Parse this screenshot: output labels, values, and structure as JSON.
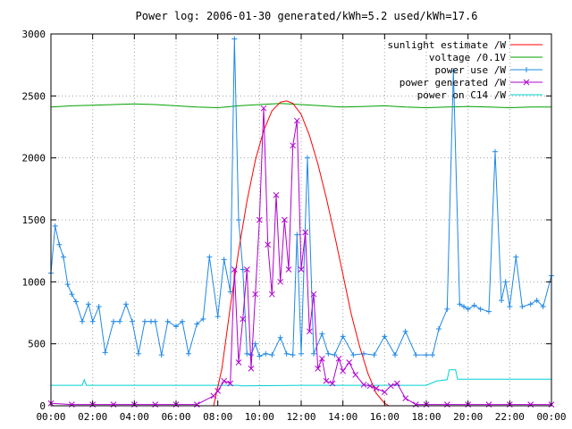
{
  "chart_data": {
    "type": "line",
    "title": "Power log: 2006-01-30 generated/kWh=5.2 used/kWh=17.6",
    "x_ticks": [
      "00:00",
      "02:00",
      "04:00",
      "06:00",
      "08:00",
      "10:00",
      "12:00",
      "14:00",
      "16:00",
      "18:00",
      "20:00",
      "22:00",
      "00:00"
    ],
    "y_ticks": [
      0,
      500,
      1000,
      1500,
      2000,
      2500,
      3000
    ],
    "xlim_hours": [
      0,
      24
    ],
    "ylim": [
      0,
      3000
    ],
    "legend_placement": "top-right",
    "series": [
      {
        "name": "sunlight estimate /W",
        "color": "#ff0000",
        "style": "line",
        "x": [
          7.8,
          8.2,
          8.6,
          9.0,
          9.4,
          9.8,
          10.2,
          10.6,
          11.0,
          11.3,
          11.6,
          12.0,
          12.4,
          12.8,
          13.2,
          13.6,
          14.0,
          14.4,
          14.8,
          15.2,
          15.6,
          16.0,
          16.2
        ],
        "values": [
          0,
          300,
          800,
          1250,
          1650,
          1980,
          2220,
          2380,
          2450,
          2460,
          2440,
          2350,
          2180,
          1950,
          1680,
          1380,
          1060,
          740,
          480,
          260,
          100,
          20,
          0
        ]
      },
      {
        "name": "voltage /0.1V",
        "color": "#00a000",
        "style": "line",
        "x": [
          0,
          1,
          2,
          3,
          4,
          5,
          6,
          7,
          8,
          9,
          10,
          11,
          12,
          13,
          14,
          15,
          16,
          17,
          18,
          19,
          20,
          21,
          22,
          23,
          24
        ],
        "values": [
          2410,
          2420,
          2425,
          2430,
          2435,
          2430,
          2420,
          2410,
          2405,
          2420,
          2430,
          2440,
          2430,
          2420,
          2410,
          2415,
          2420,
          2410,
          2405,
          2410,
          2415,
          2410,
          2405,
          2410,
          2410
        ]
      },
      {
        "name": "power use /W",
        "color": "#1e88e5",
        "style": "linespoints",
        "x": [
          0,
          0.2,
          0.4,
          0.6,
          0.8,
          1.0,
          1.2,
          1.5,
          1.8,
          2.0,
          2.3,
          2.6,
          3.0,
          3.3,
          3.6,
          3.9,
          4.2,
          4.5,
          4.8,
          5.0,
          5.3,
          5.6,
          6.0,
          6.3,
          6.6,
          7.0,
          7.3,
          7.6,
          8.0,
          8.3,
          8.6,
          8.8,
          9.0,
          9.2,
          9.4,
          9.6,
          9.8,
          10.0,
          10.3,
          10.6,
          11.0,
          11.3,
          11.6,
          11.8,
          12.0,
          12.3,
          12.6,
          13.0,
          13.3,
          13.6,
          14.0,
          14.5,
          15.0,
          15.5,
          16.0,
          16.5,
          17.0,
          17.5,
          18.0,
          18.3,
          18.6,
          19.0,
          19.3,
          19.6,
          19.8,
          20.0,
          20.3,
          20.6,
          21.0,
          21.3,
          21.6,
          21.8,
          22.0,
          22.3,
          22.6,
          23.0,
          23.3,
          23.6,
          24.0
        ],
        "values": [
          1070,
          1450,
          1300,
          1200,
          980,
          900,
          840,
          680,
          820,
          680,
          800,
          430,
          680,
          680,
          820,
          680,
          420,
          680,
          680,
          680,
          410,
          680,
          640,
          680,
          420,
          660,
          700,
          1200,
          720,
          1180,
          920,
          2960,
          1500,
          1100,
          420,
          410,
          500,
          400,
          420,
          410,
          550,
          420,
          410,
          1380,
          420,
          2000,
          420,
          580,
          420,
          410,
          560,
          410,
          420,
          410,
          560,
          410,
          600,
          410,
          410,
          410,
          620,
          780,
          2700,
          820,
          800,
          780,
          810,
          780,
          760,
          2050,
          850,
          1000,
          800,
          1200,
          800,
          820,
          850,
          800,
          1050
        ]
      },
      {
        "name": "power generated /W",
        "color": "#b000d0",
        "style": "linespoints",
        "x": [
          0,
          1,
          2,
          3,
          4,
          5,
          6,
          7,
          7.8,
          8.0,
          8.3,
          8.6,
          8.8,
          9.0,
          9.2,
          9.4,
          9.6,
          9.8,
          10.0,
          10.2,
          10.4,
          10.6,
          10.8,
          11.0,
          11.2,
          11.4,
          11.6,
          11.8,
          12.0,
          12.2,
          12.4,
          12.6,
          12.8,
          13.0,
          13.2,
          13.5,
          13.8,
          14.0,
          14.3,
          14.6,
          15.0,
          15.3,
          15.6,
          16.0,
          16.3,
          16.6,
          17.0,
          17.5,
          18.0,
          19,
          20,
          21,
          22,
          23,
          24
        ],
        "values": [
          20,
          10,
          10,
          10,
          10,
          10,
          10,
          10,
          80,
          120,
          200,
          180,
          1100,
          350,
          700,
          1100,
          300,
          900,
          1500,
          2400,
          1300,
          900,
          1700,
          1000,
          1500,
          1100,
          2100,
          2300,
          1100,
          1400,
          600,
          900,
          300,
          380,
          200,
          180,
          380,
          280,
          350,
          250,
          170,
          160,
          140,
          110,
          160,
          180,
          60,
          10,
          10,
          10,
          10,
          10,
          10,
          10,
          10
        ]
      },
      {
        "name": "power on C14 /W",
        "color": "#00d0d0",
        "style": "line",
        "x": [
          0,
          1.5,
          1.6,
          1.7,
          3,
          6,
          9.0,
          9.1,
          12,
          15,
          18,
          18.5,
          19.0,
          19.1,
          19.4,
          19.5,
          20,
          22,
          24
        ],
        "values": [
          165,
          165,
          210,
          165,
          165,
          165,
          165,
          160,
          165,
          165,
          165,
          200,
          210,
          290,
          290,
          215,
          215,
          215,
          215
        ]
      }
    ]
  }
}
